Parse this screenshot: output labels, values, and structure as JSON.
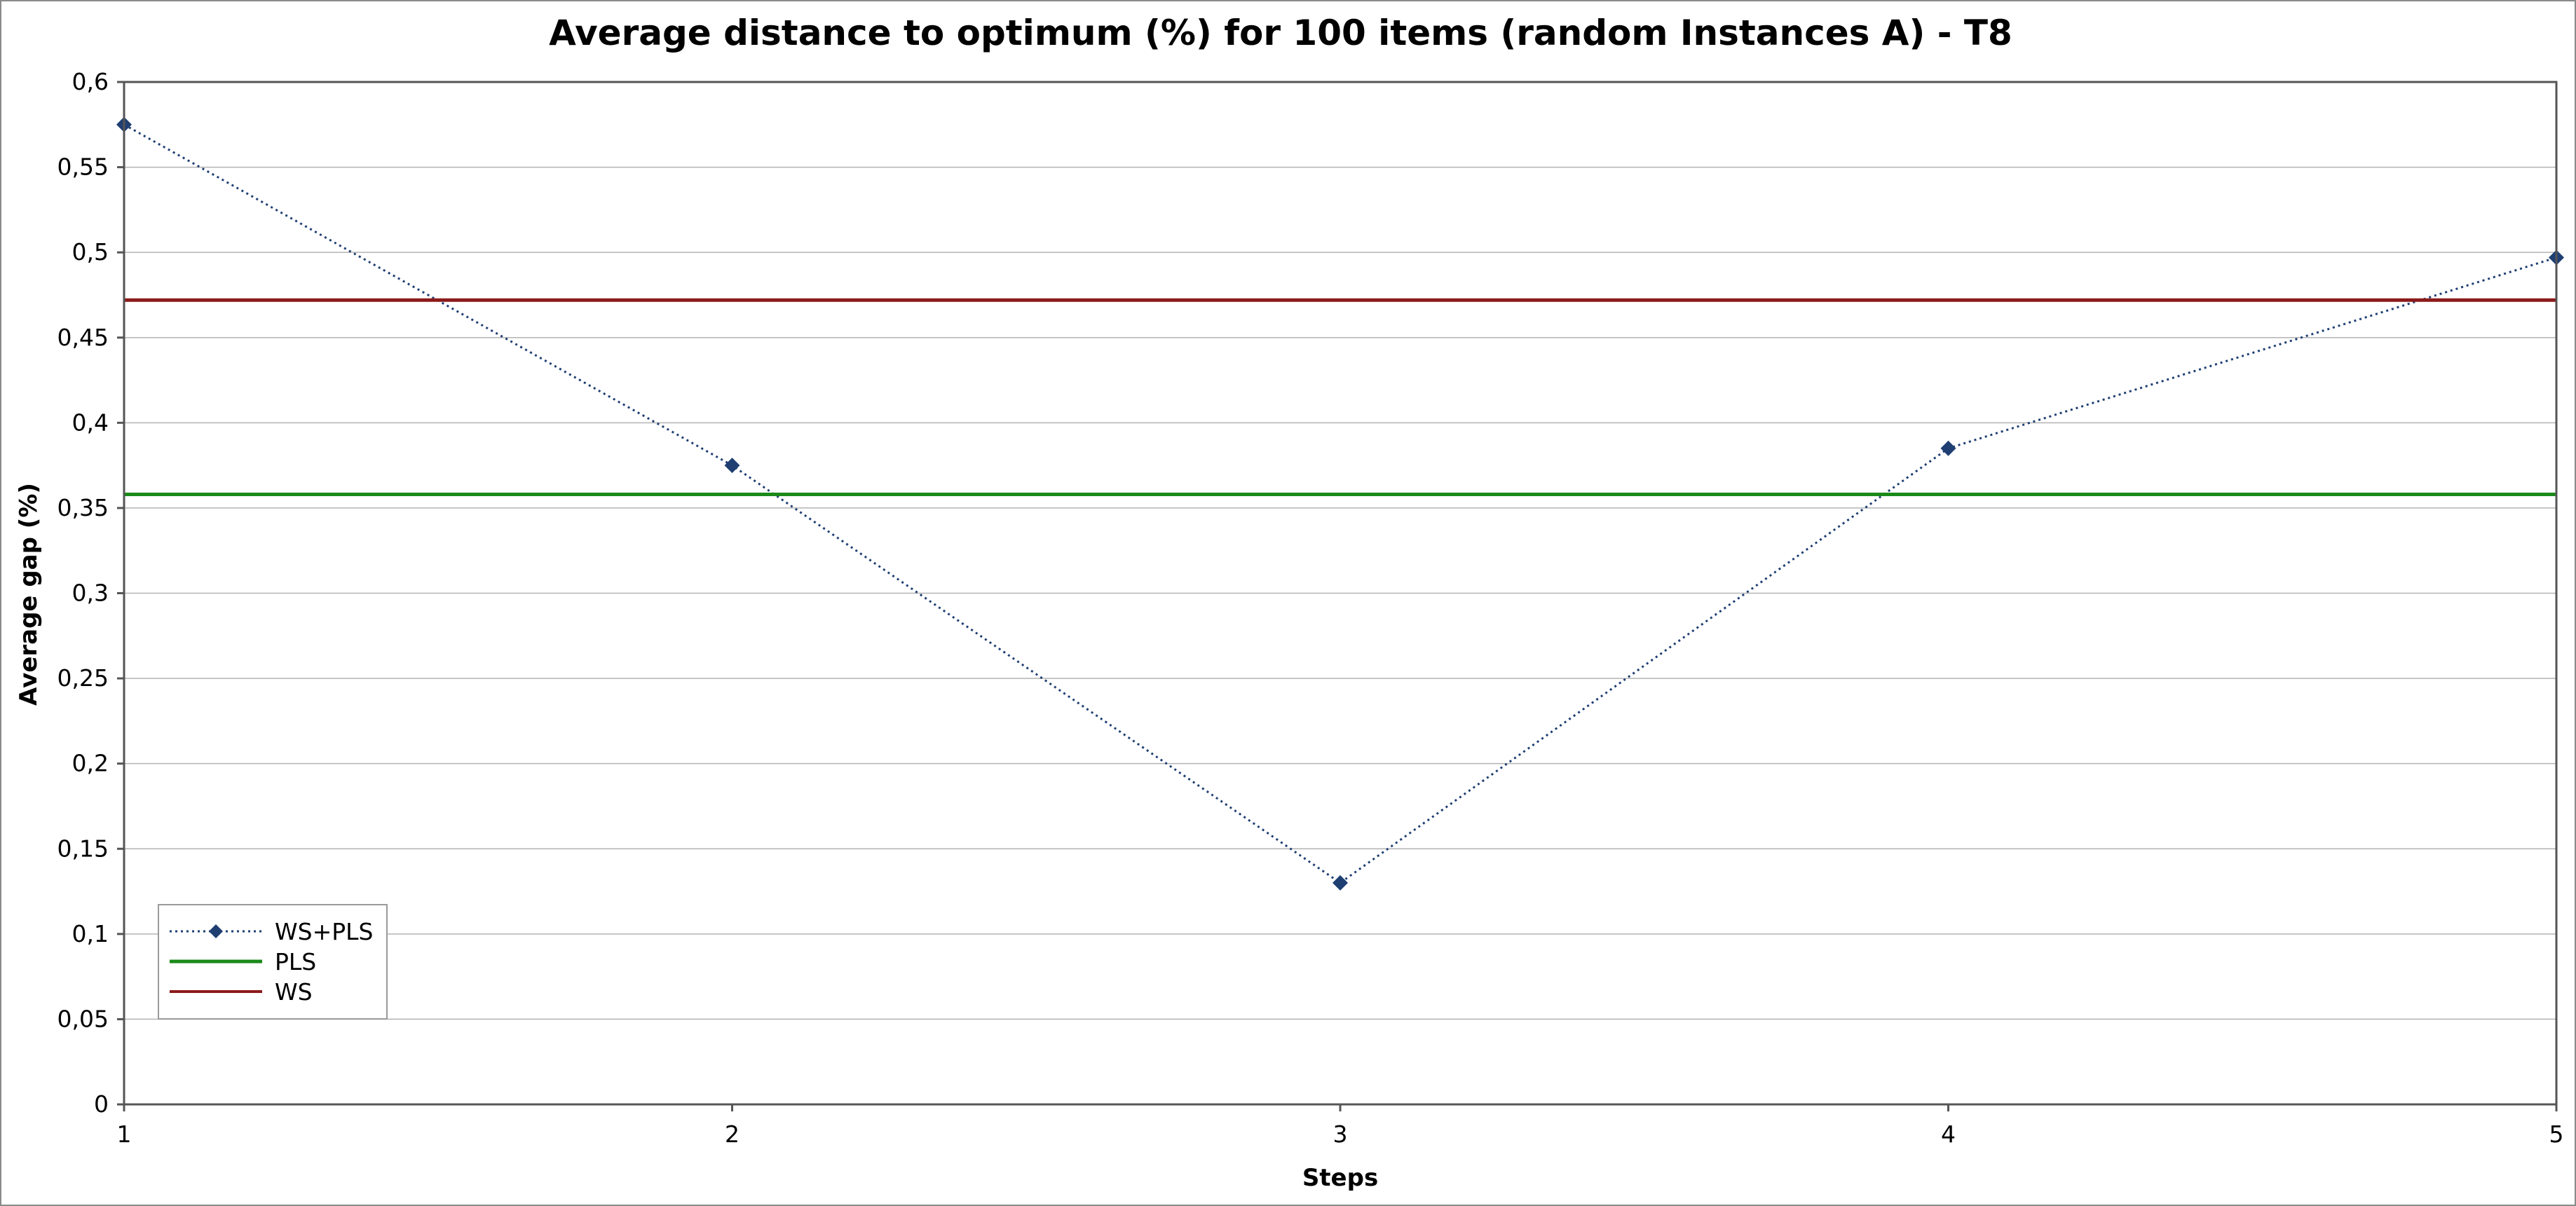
{
  "chart_data": {
    "type": "line",
    "title": "Average distance to optimum (%) for 100 items (random Instances A) - T8",
    "xlabel": "Steps",
    "ylabel": "Average gap (%)",
    "x": [
      1,
      2,
      3,
      4,
      5
    ],
    "x_tick_labels": [
      "1",
      "2",
      "3",
      "4",
      "5"
    ],
    "ylim": [
      0,
      0.6
    ],
    "y_ticks": [
      0,
      0.05,
      0.1,
      0.15,
      0.2,
      0.25,
      0.3,
      0.35,
      0.4,
      0.45,
      0.5,
      0.55,
      0.6
    ],
    "y_tick_labels": [
      "0",
      "0,05",
      "0,1",
      "0,15",
      "0,2",
      "0,25",
      "0,3",
      "0,35",
      "0,4",
      "0,45",
      "0,5",
      "0,55",
      "0,6"
    ],
    "grid": "horizontal",
    "legend_position": "bottom-left",
    "series": [
      {
        "name": "WS+PLS",
        "kind": "line-markers",
        "style": "dotted",
        "marker": "diamond",
        "color": "#1f3f73",
        "values": [
          0.575,
          0.375,
          0.13,
          0.385,
          0.497
        ]
      },
      {
        "name": "PLS",
        "kind": "constant",
        "color": "#1a8a1a",
        "values": [
          0.358,
          0.358,
          0.358,
          0.358,
          0.358
        ]
      },
      {
        "name": "WS",
        "kind": "constant",
        "color": "#8b1a1a",
        "values": [
          0.472,
          0.472,
          0.472,
          0.472,
          0.472
        ]
      }
    ]
  }
}
